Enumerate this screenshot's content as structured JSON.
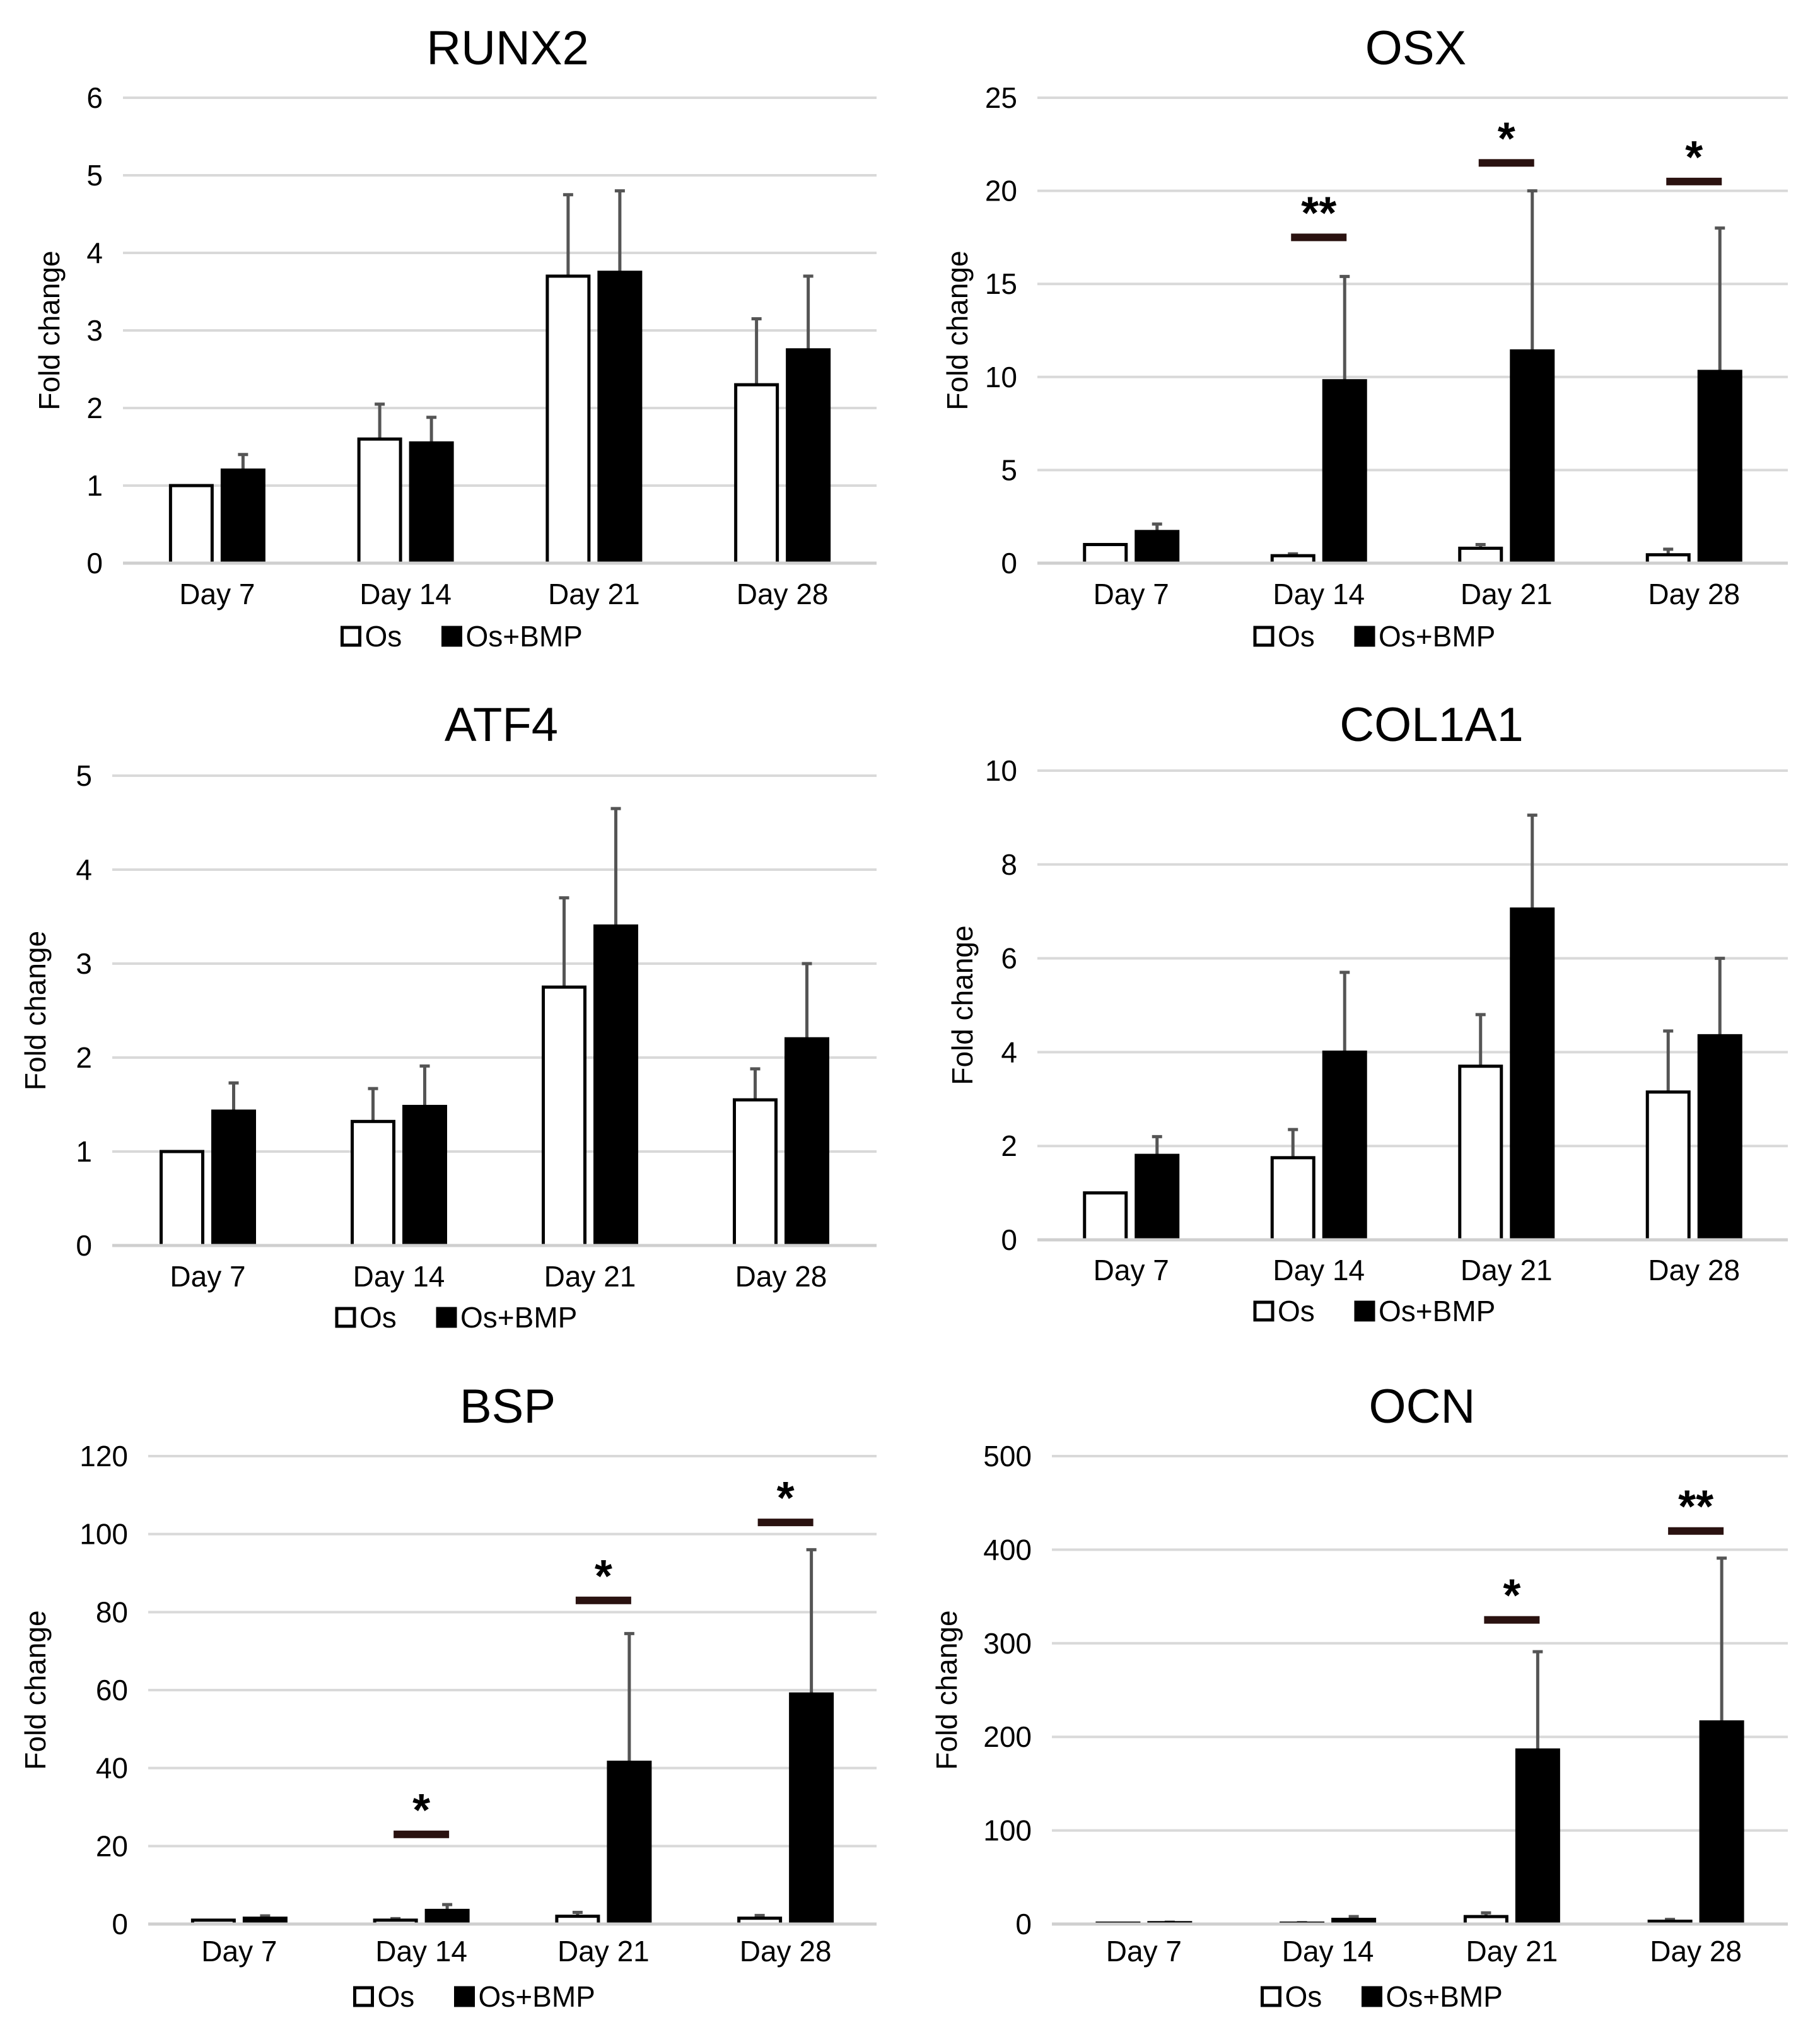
{
  "chart_data": [
    {
      "type": "bar",
      "title": "RUNX2",
      "ylabel": "Fold change",
      "xlabel": "",
      "categories": [
        "Day 7",
        "Day 14",
        "Day 21",
        "Day 28"
      ],
      "ylim": [
        0,
        6
      ],
      "yticks": [
        "0",
        "1",
        "2",
        "3",
        "4",
        "5",
        "6"
      ],
      "grid": true,
      "legend_position": "bottom",
      "series": [
        {
          "name": "Os",
          "fill": "#ffffff",
          "values": [
            1.0,
            1.6,
            3.7,
            2.3
          ],
          "errors": [
            0.0,
            0.45,
            1.05,
            0.85
          ]
        },
        {
          "name": "Os+BMP",
          "fill": "#000000",
          "values": [
            1.2,
            1.55,
            3.75,
            2.75
          ],
          "errors": [
            0.2,
            0.33,
            1.05,
            0.95
          ]
        }
      ],
      "significance": [],
      "legend_labels": [
        "Os",
        "Os+BMP"
      ]
    },
    {
      "type": "bar",
      "title": "OSX",
      "ylabel": "Fold change",
      "xlabel": "",
      "categories": [
        "Day 7",
        "Day 14",
        "Day 21",
        "Day 28"
      ],
      "ylim": [
        0,
        25
      ],
      "yticks": [
        "0",
        "5",
        "10",
        "15",
        "20",
        "25"
      ],
      "grid": true,
      "legend_position": "bottom",
      "series": [
        {
          "name": "Os",
          "fill": "#ffffff",
          "values": [
            1.0,
            0.4,
            0.8,
            0.45
          ],
          "errors": [
            0.0,
            0.1,
            0.2,
            0.3
          ]
        },
        {
          "name": "Os+BMP",
          "fill": "#000000",
          "values": [
            1.7,
            9.8,
            11.4,
            10.3
          ],
          "errors": [
            0.4,
            5.6,
            8.6,
            7.7
          ]
        }
      ],
      "significance": [
        {
          "category_index": 1,
          "label": "**",
          "level": 17.5
        },
        {
          "category_index": 2,
          "label": "*",
          "level": 21.5
        },
        {
          "category_index": 3,
          "label": "*",
          "level": 20.5
        }
      ],
      "legend_labels": [
        "Os",
        "Os+BMP"
      ]
    },
    {
      "type": "bar",
      "title": "ATF4",
      "ylabel": "Fold change",
      "xlabel": "",
      "categories": [
        "Day 7",
        "Day 14",
        "Day 21",
        "Day 28"
      ],
      "ylim": [
        0,
        5
      ],
      "yticks": [
        "0",
        "1",
        "2",
        "3",
        "4",
        "5"
      ],
      "grid": true,
      "legend_position": "bottom",
      "series": [
        {
          "name": "Os",
          "fill": "#ffffff",
          "values": [
            1.0,
            1.32,
            2.75,
            1.55
          ],
          "errors": [
            0.0,
            0.35,
            0.95,
            0.33
          ]
        },
        {
          "name": "Os+BMP",
          "fill": "#000000",
          "values": [
            1.43,
            1.48,
            3.4,
            2.2
          ],
          "errors": [
            0.3,
            0.43,
            1.25,
            0.8
          ]
        }
      ],
      "significance": [],
      "legend_labels": [
        "Os",
        "Os+BMP"
      ]
    },
    {
      "type": "bar",
      "title": "COL1A1",
      "ylabel": "Fold change",
      "xlabel": "",
      "categories": [
        "Day 7",
        "Day 14",
        "Day 21",
        "Day 28"
      ],
      "ylim": [
        0,
        10
      ],
      "yticks": [
        "0",
        "2",
        "4",
        "6",
        "8",
        "10"
      ],
      "grid": true,
      "legend_position": "bottom",
      "series": [
        {
          "name": "Os",
          "fill": "#ffffff",
          "values": [
            1.0,
            1.75,
            3.7,
            3.15
          ],
          "errors": [
            0.0,
            0.6,
            1.1,
            1.3
          ]
        },
        {
          "name": "Os+BMP",
          "fill": "#000000",
          "values": [
            1.8,
            4.0,
            7.05,
            4.35
          ],
          "errors": [
            0.4,
            1.7,
            2.0,
            1.65
          ]
        }
      ],
      "significance": [],
      "legend_labels": [
        "Os",
        "Os+BMP"
      ]
    },
    {
      "type": "bar",
      "title": "BSP",
      "ylabel": "Fold change",
      "xlabel": "",
      "categories": [
        "Day 7",
        "Day 14",
        "Day 21",
        "Day 28"
      ],
      "ylim": [
        0,
        120
      ],
      "yticks": [
        "0",
        "20",
        "40",
        "60",
        "80",
        "100",
        "120"
      ],
      "grid": true,
      "legend_position": "bottom",
      "series": [
        {
          "name": "Os",
          "fill": "#ffffff",
          "values": [
            1.0,
            1.0,
            2.0,
            1.5
          ],
          "errors": [
            0.0,
            0.4,
            1.0,
            0.7
          ]
        },
        {
          "name": "Os+BMP",
          "fill": "#000000",
          "values": [
            1.5,
            3.5,
            41.5,
            59.0
          ],
          "errors": [
            0.6,
            1.5,
            33.0,
            37.0
          ]
        }
      ],
      "significance": [
        {
          "category_index": 1,
          "label": "*",
          "level": 23
        },
        {
          "category_index": 2,
          "label": "*",
          "level": 83
        },
        {
          "category_index": 3,
          "label": "*",
          "level": 103
        }
      ],
      "legend_labels": [
        "Os",
        "Os+BMP"
      ]
    },
    {
      "type": "bar",
      "title": "OCN",
      "ylabel": "Fold change",
      "xlabel": "",
      "categories": [
        "Day 7",
        "Day 14",
        "Day 21",
        "Day 28"
      ],
      "ylim": [
        0,
        500
      ],
      "yticks": [
        "0",
        "100",
        "200",
        "300",
        "400",
        "500"
      ],
      "grid": true,
      "legend_position": "bottom",
      "series": [
        {
          "name": "Os",
          "fill": "#ffffff",
          "values": [
            1.0,
            1.0,
            8.0,
            3.0
          ],
          "errors": [
            0.0,
            0.5,
            4.0,
            2.0
          ]
        },
        {
          "name": "Os+BMP",
          "fill": "#000000",
          "values": [
            1.5,
            5.0,
            186.0,
            216.0
          ],
          "errors": [
            0.5,
            3.0,
            105.0,
            175.0
          ]
        }
      ],
      "significance": [
        {
          "category_index": 2,
          "label": "*",
          "level": 325
        },
        {
          "category_index": 3,
          "label": "**",
          "level": 420
        }
      ],
      "legend_labels": [
        "Os",
        "Os+BMP"
      ]
    }
  ]
}
